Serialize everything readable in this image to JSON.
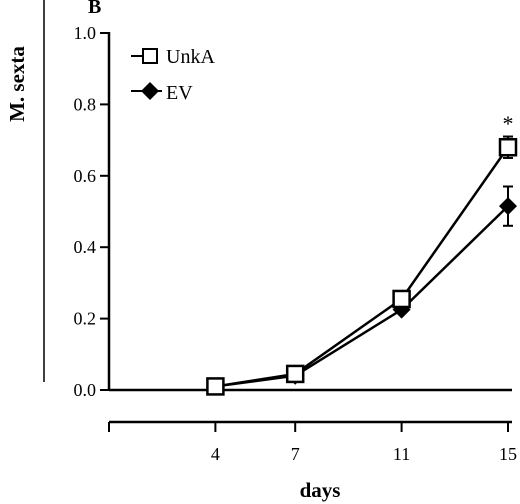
{
  "chart_data": {
    "type": "line",
    "panel_label": "B",
    "ylabel": "M. sexta",
    "xlabel": "days",
    "x": [
      4,
      7,
      11,
      15
    ],
    "xlim": [
      0,
      15
    ],
    "ylim": [
      0.0,
      1.0
    ],
    "x_ticks": [
      "4",
      "7",
      "11",
      "15"
    ],
    "y_ticks": [
      "0.0",
      "0.2",
      "0.4",
      "0.6",
      "0.8",
      "1.0"
    ],
    "grid": false,
    "legend_position": "top-left",
    "series": [
      {
        "name": "UnkA",
        "marker": "open-square",
        "values": [
          0.01,
          0.045,
          0.255,
          0.68
        ],
        "error": [
          0,
          0,
          0,
          0.03
        ]
      },
      {
        "name": "EV",
        "marker": "filled-diamond",
        "values": [
          0.01,
          0.04,
          0.225,
          0.515
        ],
        "error": [
          0,
          0,
          0,
          0.055
        ]
      }
    ],
    "annotations": [
      {
        "text": "*",
        "x": 15,
        "y": 0.72
      }
    ]
  }
}
